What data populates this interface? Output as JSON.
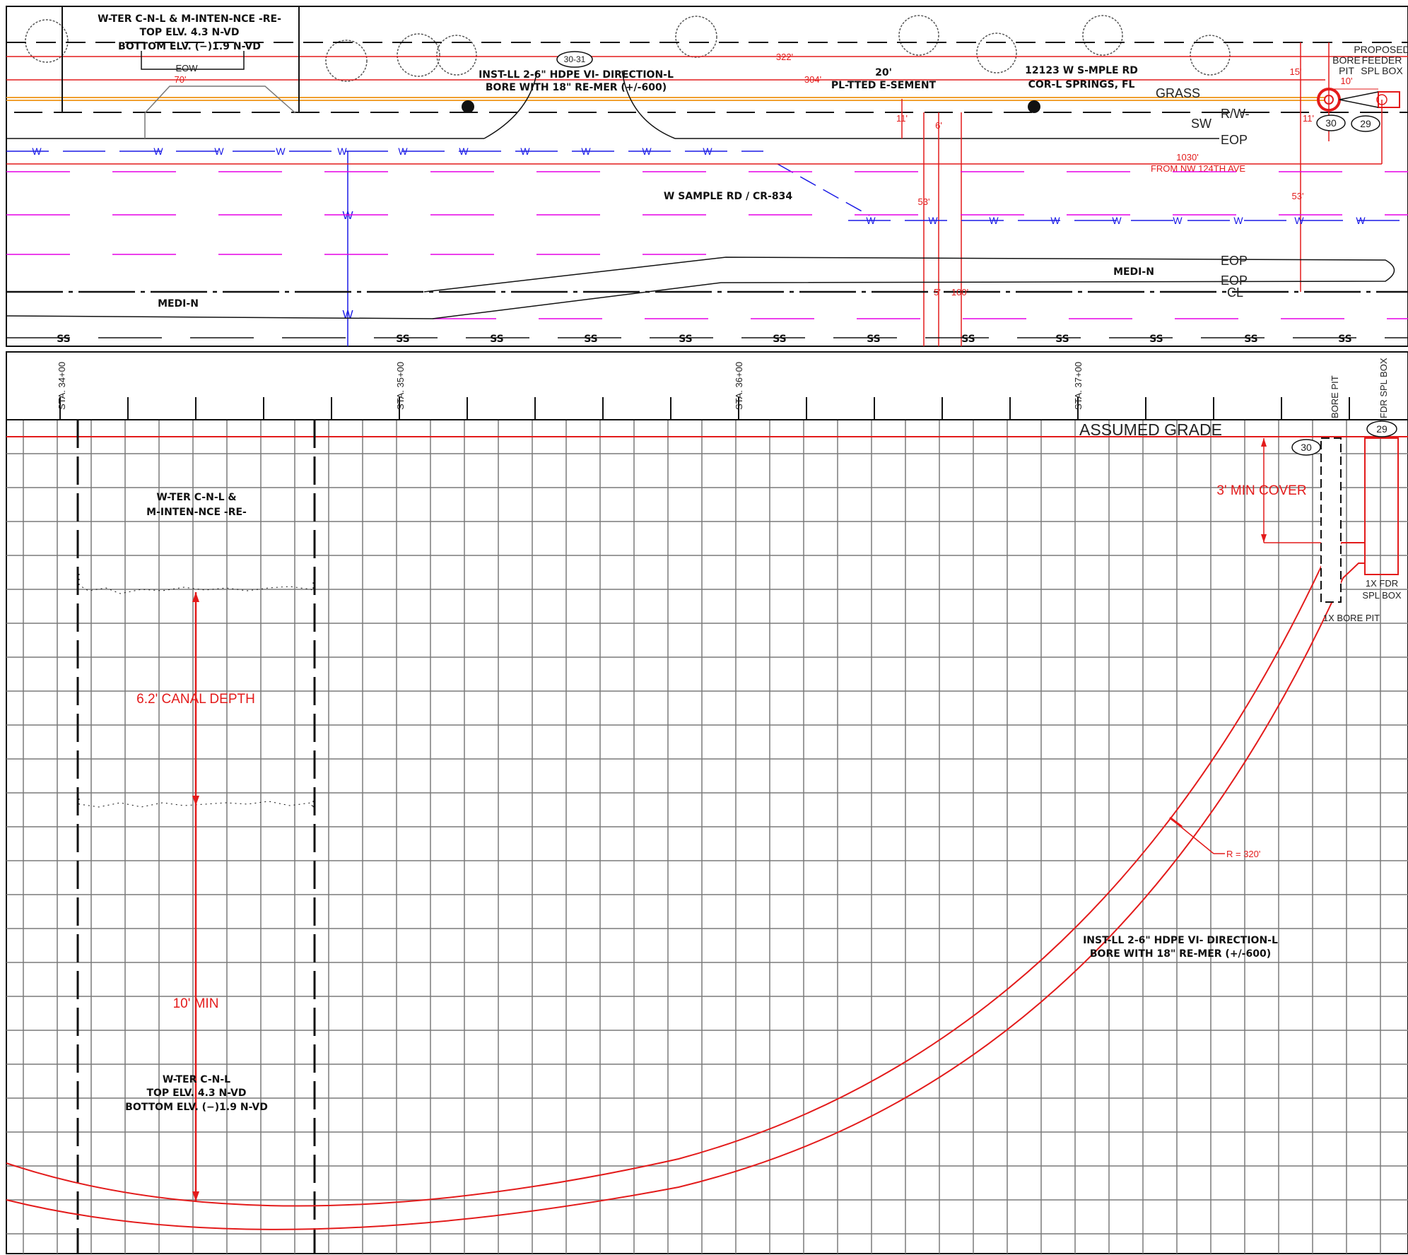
{
  "plan": {
    "canal_note": [
      "W-TER C-N-L & M-INTEN-NCE -RE-",
      "TOP ELV. 4.3 N-VD",
      "BOTTOM ELV. (−)1.9 N-VD"
    ],
    "eow": "EOW",
    "dim_70": "70'",
    "bubble_3031": "30-31",
    "install_note": [
      "INST-LL 2-6\" HDPE VI- DIRECTION-L",
      "BORE WITH 18\" RE-MER (+/-600)"
    ],
    "dim_322": "322'",
    "dim_304": "304'",
    "easement": [
      "20'",
      "PL-TTED E-SEMENT"
    ],
    "address": [
      "12123 W S-MPLE RD",
      "COR-L SPRINGS, FL"
    ],
    "grass": "GRASS",
    "row": "R/W-",
    "sw": "SW",
    "eop": "EOP",
    "proposed": [
      "PROPOSED",
      "FEEDER",
      "SPL BOX"
    ],
    "bore_pit": [
      "BORE",
      "PIT"
    ],
    "dim_15": "15'",
    "dim_10": "10'",
    "dim_11": "11'",
    "dim_6": "6'",
    "bubble_30": "30",
    "bubble_29": "29",
    "water": "W",
    "dim_1030": "1030'",
    "from_124": "FROM NW 124TH AVE",
    "road_name": "W SAMPLE RD / CR-834",
    "dim_53": "53'",
    "median": "MEDI-N",
    "cl": "CL",
    "dim_5": "5'",
    "dim_100": "100'",
    "sanitary": "SS"
  },
  "profile": {
    "stations": [
      "STA. 34+00",
      "STA. 35+00",
      "STA. 36+00",
      "STA. 37+00"
    ],
    "bore_pit_header": "BORE PIT",
    "fdr_header": "FDR SPL BOX",
    "assumed_grade": "ASSUMED GRADE",
    "bubble_30": "30",
    "bubble_29": "29",
    "min_cover": "3' MIN COVER",
    "fdr_box": [
      "1X FDR",
      "SPL BOX"
    ],
    "bore_pit_label": "1X BORE PIT",
    "canal_note": [
      "W-TER C-N-L &",
      "M-INTEN-NCE -RE-"
    ],
    "canal_depth": "6.2' CANAL DEPTH",
    "min_10": "10' MIN",
    "canal_elev": [
      "W-TER C-N-L",
      "TOP ELV. 4.3 N-VD",
      "BOTTOM ELV. (−)1.9 N-VD"
    ],
    "radius": "R = 320'",
    "bore_note": [
      "INST-LL 2-6\" HDPE VI- DIRECTION-L",
      "BORE WITH 18\" RE-MER (+/-600)"
    ]
  },
  "colors": {
    "line": "#111111",
    "red": "#e31b1b",
    "blue": "#1a1ae6",
    "magenta": "#e600e6",
    "orange": "#f0a030",
    "grid": "#7a7a7a"
  }
}
